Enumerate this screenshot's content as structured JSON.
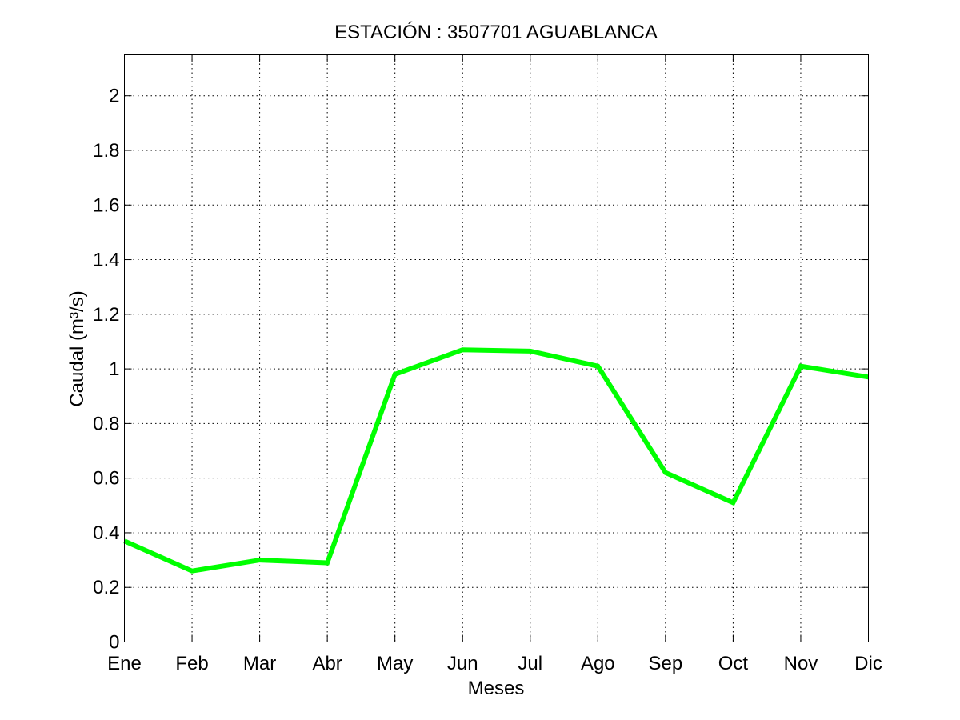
{
  "chart_data": {
    "type": "line",
    "title": "ESTACIÓN :  3507701  AGUABLANCA",
    "xlabel": "Meses",
    "ylabel": "Caudal (m³/s)",
    "categories": [
      "Ene",
      "Feb",
      "Mar",
      "Abr",
      "May",
      "Jun",
      "Jul",
      "Ago",
      "Sep",
      "Oct",
      "Nov",
      "Dic"
    ],
    "series": [
      {
        "color": "#00ff00",
        "values": [
          0.37,
          0.26,
          0.3,
          0.29,
          0.98,
          1.07,
          1.065,
          1.01,
          0.62,
          0.51,
          1.01,
          0.97
        ]
      }
    ],
    "ylim": [
      0,
      2.15
    ],
    "yticks": [
      0,
      0.2,
      0.4,
      0.6,
      0.8,
      1,
      1.2,
      1.4,
      1.6,
      1.8,
      2
    ],
    "ytick_labels": [
      "0",
      "0.2",
      "0.4",
      "0.6",
      "0.8",
      "1",
      "1.2",
      "1.4",
      "1.6",
      "1.8",
      "2"
    ],
    "grid": true,
    "legend": false
  }
}
